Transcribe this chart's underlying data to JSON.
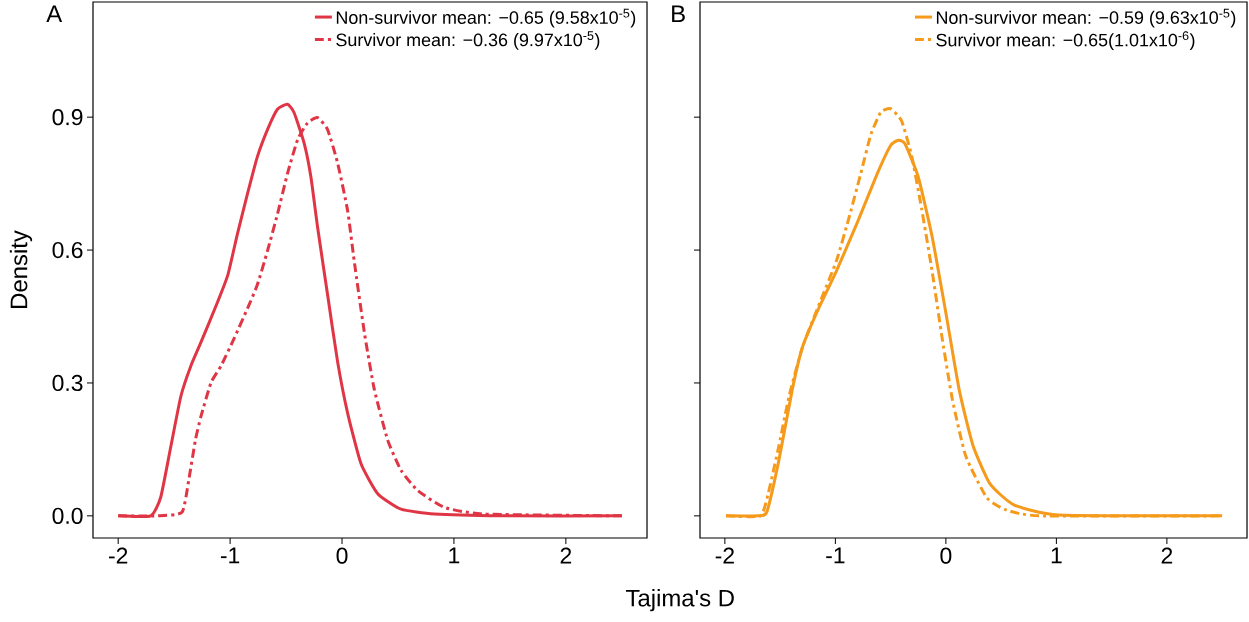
{
  "chart_data": [
    {
      "type": "line",
      "title": "A",
      "xlabel": "Tajima's D",
      "ylabel": "Density",
      "legend": "top right",
      "line_style": "solid",
      "marker": "none",
      "grid": false,
      "xlim": [
        -2.225,
        2.725
      ],
      "ylim": [
        -0.05,
        1.16
      ],
      "xticks": [
        -2,
        -1,
        0,
        1,
        2
      ],
      "yticks": [
        {
          "value": 0,
          "label": "0.0"
        },
        {
          "value": 0.3,
          "label": "0.3"
        },
        {
          "value": 0.6,
          "label": "0.6"
        },
        {
          "value": 0.9,
          "label": "0.9"
        }
      ],
      "series": [
        {
          "name": "Non-survivor mean: −0.65 (9.58x10$^{-5}$)",
          "color": "#e03545",
          "x": [
            -2.0,
            -1.71,
            -1.62,
            -1.53,
            -1.44,
            -1.35,
            -1.26,
            -1.11,
            -1.02,
            -0.935,
            -0.845,
            -0.756,
            -0.666,
            -0.577,
            -0.487,
            -0.428,
            -0.338,
            -0.278,
            -0.218,
            -0.129,
            -0.039,
            0.05,
            0.169,
            0.319,
            0.527,
            0.825,
            1.42,
            2.5
          ],
          "values": [
            0,
            0,
            0.042,
            0.156,
            0.27,
            0.339,
            0.392,
            0.484,
            0.544,
            0.636,
            0.727,
            0.811,
            0.872,
            0.918,
            0.929,
            0.91,
            0.841,
            0.765,
            0.651,
            0.499,
            0.347,
            0.232,
            0.118,
            0.05,
            0.015,
            0.004,
            0,
            0
          ]
        },
        {
          "name": "Survivor mean: −0.36 (9.97x10$^{-5}$)",
          "color": "#e03545",
          "line_style": "dashed",
          "x": [
            -2.0,
            -1.65,
            -1.43,
            -1.37,
            -1.31,
            -1.26,
            -1.17,
            -1.08,
            -0.965,
            -0.845,
            -0.756,
            -0.666,
            -0.577,
            -0.487,
            -0.397,
            -0.308,
            -0.218,
            -0.129,
            -0.039,
            0.05,
            0.109,
            0.199,
            0.288,
            0.408,
            0.527,
            0.677,
            0.915,
            1.27,
            2.5
          ],
          "values": [
            0,
            0,
            0.008,
            0.08,
            0.171,
            0.225,
            0.301,
            0.339,
            0.4,
            0.468,
            0.522,
            0.598,
            0.681,
            0.773,
            0.849,
            0.887,
            0.899,
            0.872,
            0.796,
            0.689,
            0.575,
            0.415,
            0.286,
            0.171,
            0.103,
            0.057,
            0.019,
            0.004,
            0
          ]
        }
      ]
    },
    {
      "type": "line",
      "title": "B",
      "legend": "top right",
      "line_style": "solid",
      "marker": "none",
      "grid": false,
      "tick_labels": "x",
      "xlim": [
        -2.225,
        2.725
      ],
      "ylim": [
        -0.05,
        1.16
      ],
      "xticks": [
        -2,
        -1,
        0,
        1,
        2
      ],
      "yticks": [
        0,
        0.3,
        0.6,
        0.9
      ],
      "series": [
        {
          "name": "Non-survivor mean: −0.59 (9.63x10$^{-5}$)",
          "color": "#f59a1b",
          "x": [
            -1.99,
            -1.7,
            -1.62,
            -1.51,
            -1.39,
            -1.3,
            -1.17,
            -0.99,
            -0.8,
            -0.62,
            -0.5,
            -0.43,
            -0.37,
            -0.25,
            -0.125,
            0.0,
            0.12,
            0.245,
            0.4,
            0.615,
            1.02,
            2.5
          ],
          "values": [
            0,
            0,
            0.009,
            0.127,
            0.285,
            0.379,
            0.458,
            0.553,
            0.663,
            0.773,
            0.836,
            0.848,
            0.84,
            0.765,
            0.631,
            0.458,
            0.285,
            0.159,
            0.072,
            0.025,
            0.002,
            0
          ]
        },
        {
          "name": "Survivor mean: −0.65(1.01x10$^{-6}$)",
          "color": "#f59a1b",
          "line_style": "dashed",
          "x": [
            -1.99,
            -1.68,
            -1.61,
            -1.51,
            -1.42,
            -1.3,
            -1.14,
            -0.99,
            -0.87,
            -0.77,
            -0.68,
            -0.59,
            -0.5,
            -0.4,
            -0.31,
            -0.22,
            -0.125,
            -0.03,
            0.06,
            0.18,
            0.37,
            0.55,
            0.86,
            2.5
          ],
          "values": [
            0,
            0,
            0.048,
            0.159,
            0.269,
            0.379,
            0.482,
            0.576,
            0.679,
            0.773,
            0.86,
            0.911,
            0.919,
            0.891,
            0.813,
            0.694,
            0.553,
            0.395,
            0.261,
            0.135,
            0.041,
            0.013,
            0,
            0
          ]
        }
      ]
    }
  ]
}
